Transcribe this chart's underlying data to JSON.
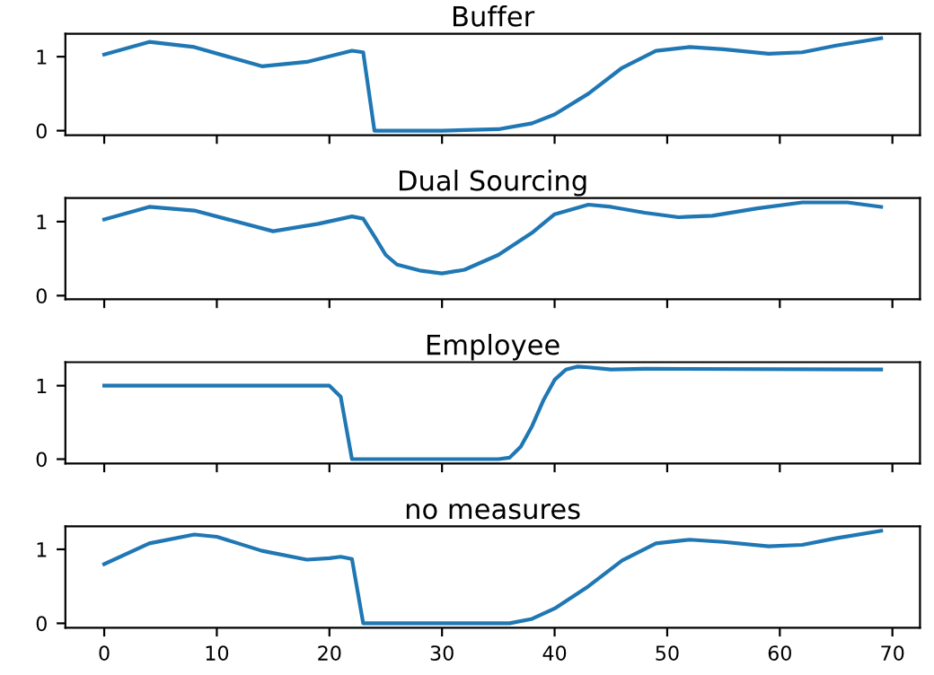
{
  "chart_data": [
    {
      "type": "line",
      "title": "Buffer",
      "x": [
        0,
        4,
        8,
        14,
        18,
        22,
        23,
        24,
        30,
        35,
        38,
        40,
        43,
        46,
        49,
        52,
        55,
        59,
        62,
        65,
        69
      ],
      "series": [
        {
          "color": "#1f77b4",
          "values": [
            1.03,
            1.2,
            1.13,
            0.87,
            0.93,
            1.08,
            1.06,
            0.0,
            0.0,
            0.02,
            0.1,
            0.22,
            0.5,
            0.85,
            1.08,
            1.13,
            1.1,
            1.04,
            1.06,
            1.15,
            1.25
          ]
        }
      ],
      "xlim": [
        -3.45,
        72.45
      ],
      "ylim": [
        -0.06,
        1.31
      ],
      "xticks": [
        {
          "value": 0,
          "label": null
        },
        {
          "value": 10,
          "label": null
        },
        {
          "value": 20,
          "label": null
        },
        {
          "value": 30,
          "label": null
        },
        {
          "value": 40,
          "label": null
        },
        {
          "value": 50,
          "label": null
        },
        {
          "value": 60,
          "label": null
        },
        {
          "value": 70,
          "label": null
        }
      ],
      "yticks": [
        0,
        1
      ],
      "tick_labels": "y"
    },
    {
      "type": "line",
      "title": "Dual Sourcing",
      "x": [
        0,
        4,
        8,
        15,
        19,
        22,
        23,
        24,
        25,
        26,
        28,
        30,
        32,
        35,
        38,
        40,
        43,
        45,
        48,
        51,
        54,
        58,
        62,
        66,
        69
      ],
      "series": [
        {
          "color": "#1f77b4",
          "values": [
            1.03,
            1.2,
            1.15,
            0.87,
            0.97,
            1.07,
            1.04,
            0.8,
            0.55,
            0.42,
            0.34,
            0.3,
            0.35,
            0.55,
            0.85,
            1.1,
            1.23,
            1.2,
            1.12,
            1.06,
            1.08,
            1.18,
            1.26,
            1.26,
            1.2
          ]
        }
      ],
      "xlim": [
        -3.45,
        72.45
      ],
      "ylim": [
        -0.05,
        1.32
      ],
      "xticks": [
        {
          "value": 0,
          "label": null
        },
        {
          "value": 10,
          "label": null
        },
        {
          "value": 20,
          "label": null
        },
        {
          "value": 30,
          "label": null
        },
        {
          "value": 40,
          "label": null
        },
        {
          "value": 50,
          "label": null
        },
        {
          "value": 60,
          "label": null
        },
        {
          "value": 70,
          "label": null
        }
      ],
      "yticks": [
        0,
        1
      ],
      "tick_labels": "y"
    },
    {
      "type": "line",
      "title": "Employee",
      "x": [
        0,
        20,
        21,
        22,
        35,
        36,
        37,
        38,
        39,
        40,
        41,
        42,
        43,
        45,
        48,
        69
      ],
      "series": [
        {
          "color": "#1f77b4",
          "values": [
            1,
            1,
            0.85,
            0,
            0,
            0.02,
            0.17,
            0.45,
            0.8,
            1.08,
            1.22,
            1.26,
            1.25,
            1.22,
            1.23,
            1.22
          ]
        }
      ],
      "xlim": [
        -3.45,
        72.45
      ],
      "ylim": [
        -0.06,
        1.32
      ],
      "xticks": [
        {
          "value": 0,
          "label": null
        },
        {
          "value": 10,
          "label": null
        },
        {
          "value": 20,
          "label": null
        },
        {
          "value": 30,
          "label": null
        },
        {
          "value": 40,
          "label": null
        },
        {
          "value": 50,
          "label": null
        },
        {
          "value": 60,
          "label": null
        },
        {
          "value": 70,
          "label": null
        }
      ],
      "yticks": [
        0,
        1
      ],
      "tick_labels": "y"
    },
    {
      "type": "line",
      "title": "no measures",
      "x": [
        0,
        4,
        8,
        10,
        14,
        18,
        20,
        21,
        22,
        23,
        36,
        38,
        40,
        43,
        46,
        49,
        52,
        55,
        59,
        62,
        65,
        69
      ],
      "series": [
        {
          "color": "#1f77b4",
          "values": [
            0.8,
            1.08,
            1.2,
            1.17,
            0.98,
            0.86,
            0.88,
            0.9,
            0.87,
            0.0,
            0.0,
            0.06,
            0.2,
            0.5,
            0.85,
            1.08,
            1.13,
            1.1,
            1.04,
            1.06,
            1.15,
            1.25
          ]
        }
      ],
      "xlim": [
        -3.45,
        72.45
      ],
      "ylim": [
        -0.06,
        1.31
      ],
      "xticks": [
        0,
        10,
        20,
        30,
        40,
        50,
        60,
        70
      ],
      "yticks": [
        0,
        1
      ]
    }
  ]
}
